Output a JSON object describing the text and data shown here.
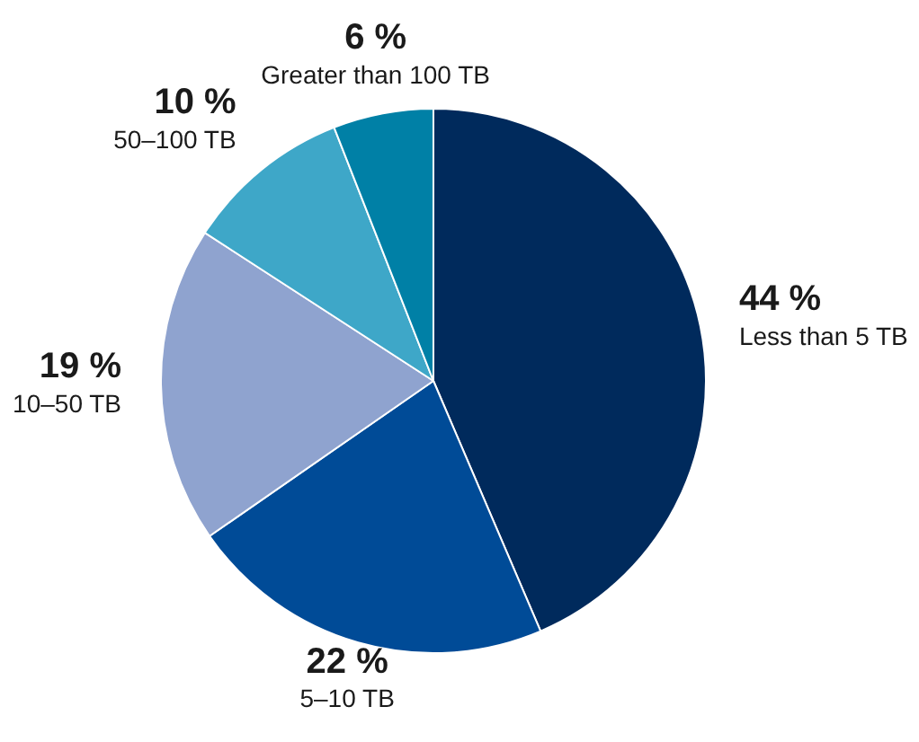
{
  "chart_data": {
    "type": "pie",
    "categories": [
      "Less than 5 TB",
      "5–10 TB",
      "10–50 TB",
      "50–100 TB",
      "Greater than 100 TB"
    ],
    "values": [
      44,
      22,
      19,
      10,
      6
    ],
    "colors": [
      "#002a5c",
      "#004b97",
      "#8fa3cf",
      "#3ea7c8",
      "#0080a6"
    ],
    "value_labels": [
      "44 %",
      "22 %",
      "19 %",
      "10 %",
      "6 %"
    ],
    "legend": false
  }
}
